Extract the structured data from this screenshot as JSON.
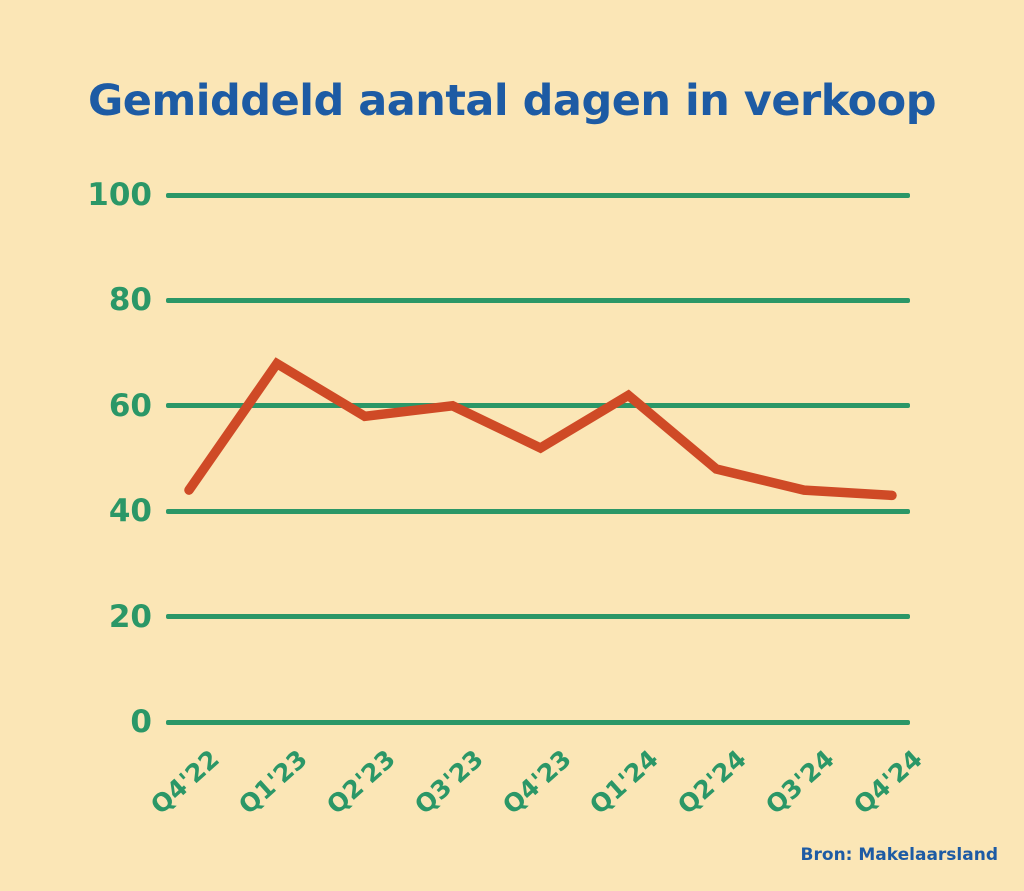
{
  "page": {
    "background_color": "#FBE6B6",
    "title": "Gemiddeld aantal dagen in verkoop",
    "title_color": "#1D5BA4",
    "source_label": "Bron: Makelaarsland",
    "source_color": "#1D5BA4"
  },
  "chart_data": {
    "type": "line",
    "title": "Gemiddeld aantal dagen in verkoop",
    "categories": [
      "Q4'22",
      "Q1'23",
      "Q2'23",
      "Q3'23",
      "Q4'23",
      "Q1'24",
      "Q2'24",
      "Q3'24",
      "Q4'24"
    ],
    "values": [
      44,
      68,
      58,
      60,
      52,
      62,
      48,
      44,
      43
    ],
    "y_ticks": [
      0,
      20,
      40,
      60,
      80,
      100
    ],
    "ylim": [
      0,
      100
    ],
    "xlabel": "",
    "ylabel": "",
    "grid": "horizontal",
    "legend": "none",
    "line_color": "#CF4A26",
    "grid_color": "#2B9767",
    "tick_label_color": "#2B9767",
    "source": "Bron: Makelaarsland"
  }
}
